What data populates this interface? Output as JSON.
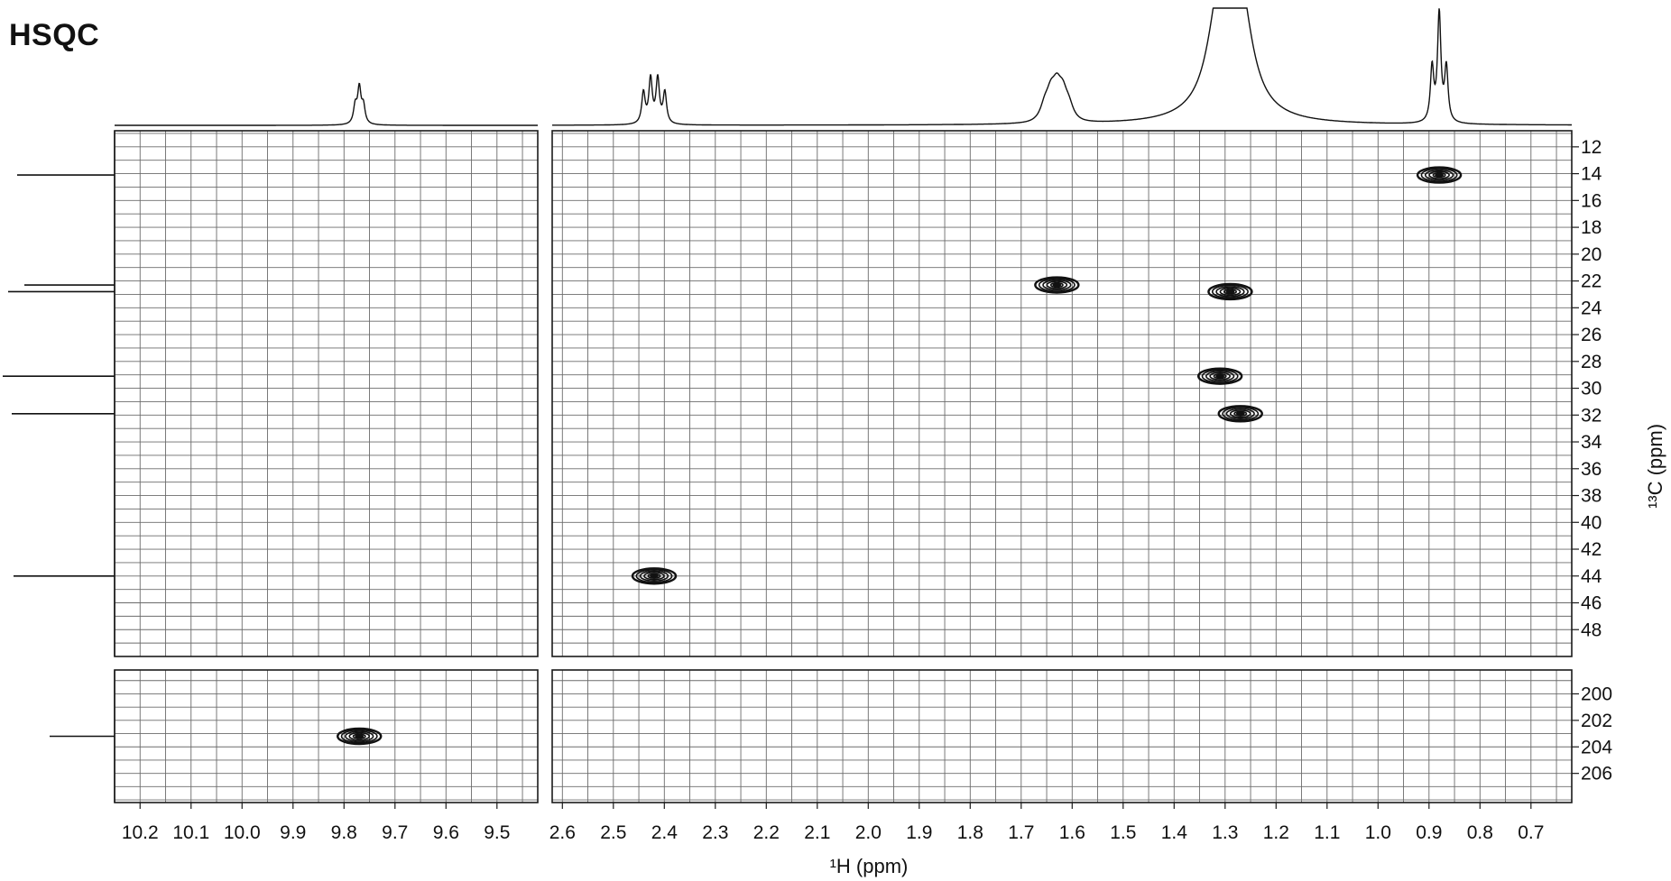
{
  "title": "HSQC",
  "chart_data": {
    "type": "scatter",
    "subtype": "2D NMR contour (HSQC)",
    "title": "HSQC",
    "xlabel": "¹H (ppm)",
    "ylabel": "¹³C (ppm)",
    "x_reversed": true,
    "x_segments": [
      {
        "from": 10.25,
        "to": 9.42,
        "ticks": [
          "10.2",
          "10.1",
          "10.0",
          "9.9",
          "9.8",
          "9.7",
          "9.6",
          "9.5"
        ]
      },
      {
        "from": 2.62,
        "to": 0.62,
        "ticks": [
          "2.6",
          "2.5",
          "2.4",
          "2.3",
          "2.2",
          "2.1",
          "2.0",
          "1.9",
          "1.8",
          "1.7",
          "1.6",
          "1.5",
          "1.4",
          "1.3",
          "1.2",
          "1.1",
          "1.0",
          "0.9",
          "0.8",
          "0.7"
        ]
      }
    ],
    "y_segments": [
      {
        "from": 10.8,
        "to": 50.0,
        "ticks": [
          "12",
          "14",
          "16",
          "18",
          "20",
          "22",
          "24",
          "26",
          "28",
          "30",
          "32",
          "34",
          "36",
          "38",
          "40",
          "42",
          "44",
          "46",
          "48"
        ]
      },
      {
        "from": 198.2,
        "to": 208.2,
        "ticks": [
          "200",
          "202",
          "204",
          "206"
        ]
      }
    ],
    "grid": true,
    "cross_peaks": [
      {
        "x": 9.77,
        "y": 203.2
      },
      {
        "x": 2.42,
        "y": 44.0
      },
      {
        "x": 1.63,
        "y": 22.3
      },
      {
        "x": 1.29,
        "y": 22.8
      },
      {
        "x": 1.31,
        "y": 29.1
      },
      {
        "x": 1.27,
        "y": 31.9
      },
      {
        "x": 0.88,
        "y": 14.1
      }
    ],
    "proton_1d_peaks": [
      {
        "x": 9.77,
        "height": 0.3,
        "width": 0.004,
        "mult": "t",
        "j": 0.008
      },
      {
        "x": 2.42,
        "height": 0.38,
        "width": 0.004,
        "mult": "td",
        "j": 0.014
      },
      {
        "x": 1.63,
        "height": 0.18,
        "width": 0.01,
        "mult": "m",
        "j": 0.012
      },
      {
        "x": 1.29,
        "height": 0.48,
        "width": 0.03,
        "mult": "m",
        "j": 0.014
      },
      {
        "x": 0.88,
        "height": 0.92,
        "width": 0.004,
        "mult": "t",
        "j": 0.014
      }
    ],
    "carbon_1d_peaks": [
      14.1,
      22.3,
      22.8,
      29.1,
      31.9,
      44.0,
      203.2
    ]
  }
}
